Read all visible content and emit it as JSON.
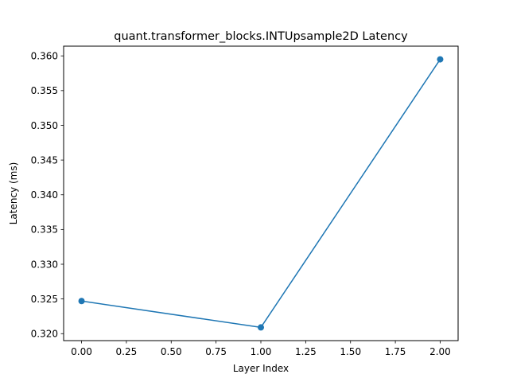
{
  "chart_data": {
    "type": "line",
    "title": "quant.transformer_blocks.INTUpsample2D Latency",
    "xlabel": "Layer Index",
    "ylabel": "Latency (ms)",
    "x": [
      0,
      1,
      2
    ],
    "series": [
      {
        "values": [
          0.3247,
          0.3209,
          0.3595
        ],
        "color": "#1f77b4",
        "marker": "circle"
      }
    ],
    "xlim": [
      -0.1,
      2.1
    ],
    "ylim": [
      0.319,
      0.3614
    ],
    "xticks": [
      0.0,
      0.25,
      0.5,
      0.75,
      1.0,
      1.25,
      1.5,
      1.75,
      2.0
    ],
    "xtick_labels": [
      "0.00",
      "0.25",
      "0.50",
      "0.75",
      "1.00",
      "1.25",
      "1.50",
      "1.75",
      "2.00"
    ],
    "yticks": [
      0.32,
      0.325,
      0.33,
      0.335,
      0.34,
      0.345,
      0.35,
      0.355,
      0.36
    ],
    "ytick_labels": [
      "0.320",
      "0.325",
      "0.330",
      "0.335",
      "0.340",
      "0.345",
      "0.350",
      "0.355",
      "0.360"
    ],
    "grid": false,
    "legend": "none"
  }
}
